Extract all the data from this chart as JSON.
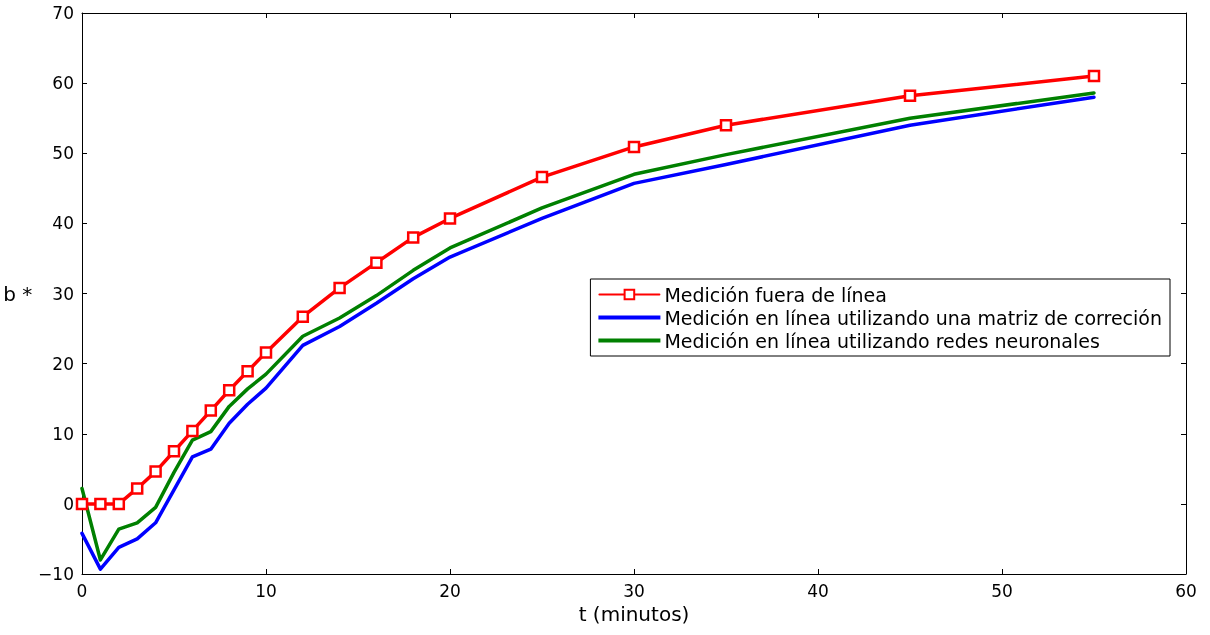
{
  "chart_data": {
    "type": "line",
    "xlabel": "t (minutos)",
    "ylabel": "b *",
    "x": [
      0,
      1,
      2,
      3,
      4,
      5,
      6,
      7,
      8,
      9,
      10,
      12,
      14,
      16,
      18,
      20,
      25,
      30,
      35,
      45,
      55
    ],
    "xlim": [
      0,
      60
    ],
    "xticks": [
      0,
      10,
      20,
      30,
      40,
      50,
      60
    ],
    "ylim": [
      -10,
      70
    ],
    "yticks": [
      -10,
      0,
      10,
      20,
      30,
      40,
      50,
      60,
      70
    ],
    "grid": false,
    "legend": "right",
    "line_style": "solid",
    "series": [
      {
        "name": "Medición fuera de línea",
        "color": "#ff0000",
        "marker": "square",
        "values": [
          0,
          0,
          0,
          2.2,
          4.6,
          7.5,
          10.4,
          13.3,
          16.2,
          18.9,
          21.6,
          26.7,
          30.8,
          34.4,
          38,
          40.7,
          46.6,
          50.9,
          54,
          58.2,
          61
        ]
      },
      {
        "name": "Medición en línea utilizando una matriz de correción",
        "color": "#0000ff",
        "marker": "none",
        "values": [
          -4.2,
          -9.3,
          -6.2,
          -5,
          -2.7,
          2,
          6.7,
          7.8,
          11.5,
          14.2,
          16.5,
          22.6,
          25.3,
          28.6,
          32.1,
          35.2,
          40.7,
          45.7,
          48.4,
          54,
          58
        ]
      },
      {
        "name": "Medición en línea utilizando redes neuronales",
        "color": "#008000",
        "marker": "none",
        "values": [
          2.2,
          -8,
          -3.6,
          -2.7,
          -0.5,
          4.5,
          9.1,
          10.3,
          13.9,
          16.4,
          18.5,
          23.9,
          26.5,
          29.7,
          33.3,
          36.5,
          42.2,
          47,
          49.8,
          55,
          58.6
        ]
      }
    ]
  }
}
